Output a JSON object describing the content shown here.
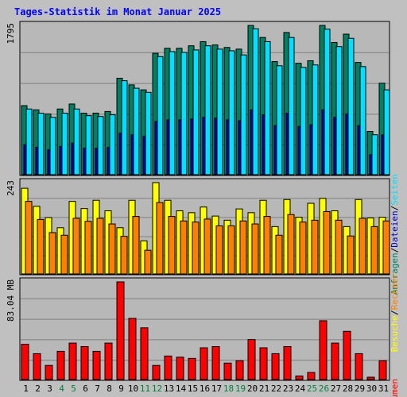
{
  "title": "Tages-Statistik im Monat Januar 2025",
  "colors": {
    "background": "#c0c0c0",
    "plot_bg": "#b8b8b8",
    "anfragen": "#008060",
    "dateien": "#0000c0",
    "seiten": "#00e0ff",
    "besuche": "#ffff00",
    "rechner": "#ff8000",
    "volumen": "#ff0000",
    "weekend_label": "#008040",
    "weekday_label": "#000000"
  },
  "chart_data": [
    {
      "type": "bar",
      "panel": "hits",
      "ymax_label": "1795",
      "ymax": 1795,
      "right_labels": [
        {
          "text": "Anfragen",
          "color": "#008060"
        },
        {
          "text": "/",
          "color": "#000000"
        },
        {
          "text": "Dateien",
          "color": "#0000c0"
        },
        {
          "text": "/",
          "color": "#000000"
        },
        {
          "text": "Seiten",
          "color": "#00e0ff"
        }
      ],
      "categories": [
        "1",
        "2",
        "3",
        "4",
        "5",
        "6",
        "7",
        "8",
        "9",
        "10",
        "11",
        "12",
        "13",
        "14",
        "15",
        "16",
        "17",
        "18",
        "19",
        "20",
        "21",
        "22",
        "23",
        "24",
        "25",
        "26",
        "27",
        "28",
        "29",
        "30",
        "31"
      ],
      "series": [
        {
          "name": "Anfragen",
          "values": [
            830,
            780,
            730,
            790,
            850,
            740,
            740,
            760,
            1160,
            1080,
            1020,
            1460,
            1520,
            1520,
            1550,
            1600,
            1560,
            1530,
            1510,
            1795,
            1650,
            1360,
            1710,
            1340,
            1370,
            1795,
            1590,
            1690,
            1350,
            520,
            1100
          ]
        },
        {
          "name": "Dateien",
          "values": [
            360,
            330,
            300,
            340,
            380,
            320,
            320,
            330,
            500,
            480,
            460,
            640,
            660,
            660,
            670,
            690,
            680,
            660,
            650,
            780,
            720,
            590,
            740,
            580,
            600,
            780,
            690,
            730,
            590,
            240,
            480
          ]
        },
        {
          "name": "Seiten",
          "values": [
            790,
            740,
            690,
            740,
            790,
            710,
            700,
            720,
            1130,
            1040,
            990,
            1420,
            1480,
            1470,
            1500,
            1550,
            1510,
            1490,
            1440,
            1755,
            1600,
            1310,
            1650,
            1290,
            1320,
            1750,
            1540,
            1640,
            1300,
            480,
            1020
          ]
        }
      ]
    },
    {
      "type": "bar",
      "panel": "visits",
      "ymax_label": "243",
      "ymax": 243,
      "right_labels": [
        {
          "text": "Besuche",
          "color": "#ffff00"
        },
        {
          "text": "/",
          "color": "#000000"
        },
        {
          "text": "Rechner",
          "color": "#ff8000"
        }
      ],
      "categories": [
        "1",
        "2",
        "3",
        "4",
        "5",
        "6",
        "7",
        "8",
        "9",
        "10",
        "11",
        "12",
        "13",
        "14",
        "15",
        "16",
        "17",
        "18",
        "19",
        "20",
        "21",
        "22",
        "23",
        "24",
        "25",
        "26",
        "27",
        "28",
        "29",
        "30",
        "31"
      ],
      "series": [
        {
          "name": "Besuche",
          "values": [
            228,
            180,
            150,
            123,
            193,
            174,
            196,
            168,
            123,
            196,
            88,
            243,
            196,
            168,
            163,
            178,
            154,
            143,
            173,
            163,
            196,
            126,
            198,
            151,
            188,
            201,
            168,
            126,
            198,
            149,
            151
          ]
        },
        {
          "name": "Rechner",
          "values": [
            193,
            145,
            110,
            103,
            148,
            140,
            148,
            133,
            100,
            153,
            63,
            190,
            153,
            141,
            138,
            146,
            128,
            128,
            141,
            133,
            153,
            103,
            158,
            138,
            143,
            166,
            143,
            101,
            148,
            126,
            141
          ]
        }
      ]
    },
    {
      "type": "bar",
      "panel": "volume",
      "ymax_label": "83.04 MB",
      "ymax": 83.04,
      "right_labels": [
        {
          "text": "Volumen",
          "color": "#ff0000"
        }
      ],
      "categories": [
        "1",
        "2",
        "3",
        "4",
        "5",
        "6",
        "7",
        "8",
        "9",
        "10",
        "11",
        "12",
        "13",
        "14",
        "15",
        "16",
        "17",
        "18",
        "19",
        "20",
        "21",
        "22",
        "23",
        "24",
        "25",
        "26",
        "27",
        "28",
        "29",
        "30",
        "31"
      ],
      "series": [
        {
          "name": "Volumen",
          "values": [
            30,
            22,
            12,
            24,
            31,
            28,
            24,
            31,
            83.04,
            52,
            44,
            12,
            20,
            19,
            18,
            27,
            28,
            14,
            16,
            34,
            27,
            22,
            28,
            3,
            6,
            50,
            31,
            41,
            22,
            2,
            16
          ]
        }
      ]
    }
  ],
  "x_labels": [
    {
      "text": "1",
      "weekend": false
    },
    {
      "text": "2",
      "weekend": false
    },
    {
      "text": "3",
      "weekend": false
    },
    {
      "text": "4",
      "weekend": true
    },
    {
      "text": "5",
      "weekend": true
    },
    {
      "text": "6",
      "weekend": false
    },
    {
      "text": "7",
      "weekend": false
    },
    {
      "text": "8",
      "weekend": false
    },
    {
      "text": "9",
      "weekend": false
    },
    {
      "text": "10",
      "weekend": false
    },
    {
      "text": "11",
      "weekend": true
    },
    {
      "text": "12",
      "weekend": true
    },
    {
      "text": "13",
      "weekend": false
    },
    {
      "text": "14",
      "weekend": false
    },
    {
      "text": "15",
      "weekend": false
    },
    {
      "text": "16",
      "weekend": false
    },
    {
      "text": "17",
      "weekend": false
    },
    {
      "text": "18",
      "weekend": true
    },
    {
      "text": "19",
      "weekend": true
    },
    {
      "text": "20",
      "weekend": false
    },
    {
      "text": "21",
      "weekend": false
    },
    {
      "text": "22",
      "weekend": false
    },
    {
      "text": "23",
      "weekend": false
    },
    {
      "text": "24",
      "weekend": false
    },
    {
      "text": "25",
      "weekend": true
    },
    {
      "text": "26",
      "weekend": true
    },
    {
      "text": "27",
      "weekend": false
    },
    {
      "text": "28",
      "weekend": false
    },
    {
      "text": "29",
      "weekend": false
    },
    {
      "text": "30",
      "weekend": false
    },
    {
      "text": "31",
      "weekend": false
    }
  ]
}
